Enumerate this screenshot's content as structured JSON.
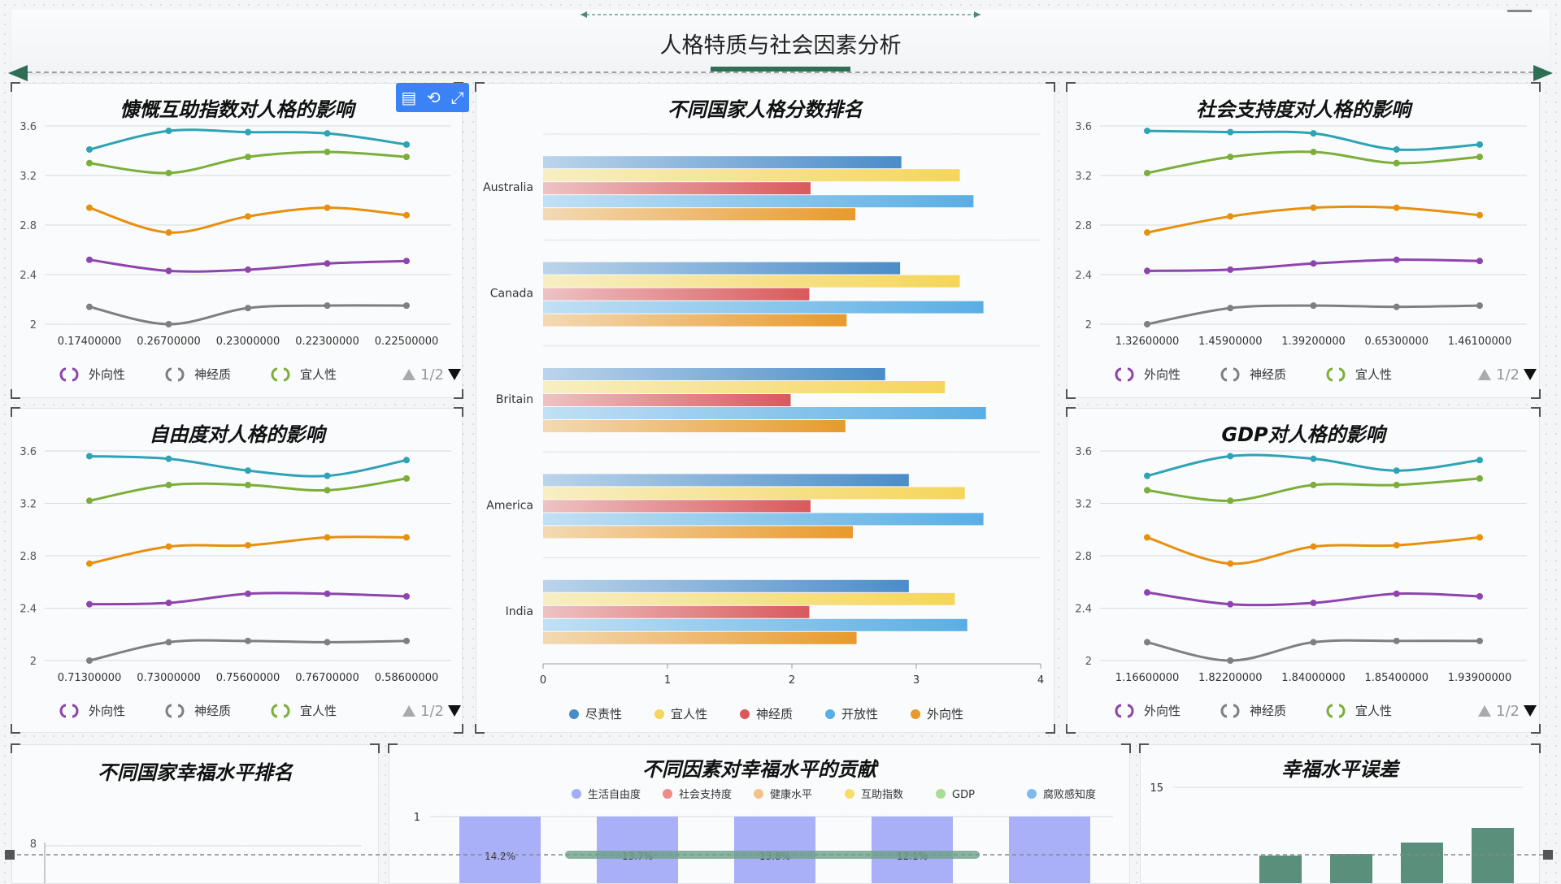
{
  "header": {
    "title": "人格特质与社会因素分析"
  },
  "colors": {
    "extraversion": "#8e44ad",
    "neuroticism": "#7f7f7f",
    "agreeableness": "#7cae3a",
    "orange": "#e8900d",
    "teal": "#2ea3b5"
  },
  "legend_labels": {
    "extraversion": "外向性",
    "neuroticism": "神经质",
    "agreeableness": "宜人性"
  },
  "pager": {
    "text": "1/2"
  },
  "toolbox": {
    "icons": [
      "data-view-icon",
      "restore-icon",
      "fullscreen-icon"
    ]
  },
  "chart_data": [
    {
      "id": "generosity",
      "type": "line",
      "title": "慷慨互助指数对人格的影响",
      "x": [
        "0.17400000",
        "0.26700000",
        "0.23000000",
        "0.22300000",
        "0.22500000"
      ],
      "ylim": [
        2,
        3.6
      ],
      "yticks": [
        "2",
        "2.4",
        "2.8",
        "3.2",
        "3.6"
      ],
      "series": [
        {
          "color": "#2ea3b5",
          "values": [
            3.41,
            3.56,
            3.55,
            3.54,
            3.45
          ]
        },
        {
          "color": "#7cae3a",
          "values": [
            3.3,
            3.22,
            3.35,
            3.39,
            3.35
          ]
        },
        {
          "color": "#e8900d",
          "values": [
            2.94,
            2.74,
            2.87,
            2.94,
            2.88
          ]
        },
        {
          "color": "#8e44ad",
          "values": [
            2.52,
            2.43,
            2.44,
            2.49,
            2.51
          ]
        },
        {
          "color": "#7f7f7f",
          "values": [
            2.14,
            2.0,
            2.13,
            2.15,
            2.15
          ]
        }
      ],
      "legend": [
        "外向性",
        "神经质",
        "宜人性"
      ]
    },
    {
      "id": "freedom",
      "type": "line",
      "title": "自由度对人格的影响",
      "x": [
        "0.71300000",
        "0.73000000",
        "0.75600000",
        "0.76700000",
        "0.58600000"
      ],
      "ylim": [
        2,
        3.6
      ],
      "yticks": [
        "2",
        "2.4",
        "2.8",
        "3.2",
        "3.6"
      ],
      "series": [
        {
          "color": "#2ea3b5",
          "values": [
            3.56,
            3.54,
            3.45,
            3.41,
            3.53
          ]
        },
        {
          "color": "#7cae3a",
          "values": [
            3.22,
            3.34,
            3.34,
            3.3,
            3.39
          ]
        },
        {
          "color": "#e8900d",
          "values": [
            2.74,
            2.87,
            2.88,
            2.94,
            2.94
          ]
        },
        {
          "color": "#8e44ad",
          "values": [
            2.43,
            2.44,
            2.51,
            2.51,
            2.49
          ]
        },
        {
          "color": "#7f7f7f",
          "values": [
            2.0,
            2.14,
            2.15,
            2.14,
            2.15
          ]
        }
      ],
      "legend": [
        "外向性",
        "神经质",
        "宜人性"
      ]
    },
    {
      "id": "country-personality",
      "type": "bar",
      "title": "不同国家人格分数排名",
      "categories": [
        "Australia",
        "Canada",
        "Britain",
        "America",
        "India"
      ],
      "xlim": [
        0,
        4
      ],
      "xticks": [
        "0",
        "1",
        "2",
        "3",
        "4"
      ],
      "series": [
        {
          "name": "尽责性",
          "color": "#4a8cc9",
          "values": [
            2.88,
            2.87,
            2.75,
            2.94,
            2.94
          ]
        },
        {
          "name": "宜人性",
          "color": "#f5d65a",
          "values": [
            3.35,
            3.35,
            3.23,
            3.39,
            3.31
          ]
        },
        {
          "name": "神经质",
          "color": "#d9595b",
          "values": [
            2.15,
            2.14,
            1.99,
            2.15,
            2.14
          ]
        },
        {
          "name": "开放性",
          "color": "#5aaee5",
          "values": [
            3.46,
            3.54,
            3.56,
            3.54,
            3.41
          ]
        },
        {
          "name": "外向性",
          "color": "#e89a2c",
          "values": [
            2.51,
            2.44,
            2.43,
            2.49,
            2.52
          ]
        }
      ]
    },
    {
      "id": "social-support",
      "type": "line",
      "title": "社会支持度对人格的影响",
      "x": [
        "1.32600000",
        "1.45900000",
        "1.39200000",
        "0.65300000",
        "1.46100000"
      ],
      "ylim": [
        2,
        3.6
      ],
      "yticks": [
        "2",
        "2.4",
        "2.8",
        "3.2",
        "3.6"
      ],
      "series": [
        {
          "color": "#2ea3b5",
          "values": [
            3.56,
            3.55,
            3.54,
            3.41,
            3.45
          ]
        },
        {
          "color": "#7cae3a",
          "values": [
            3.22,
            3.35,
            3.39,
            3.3,
            3.35
          ]
        },
        {
          "color": "#e8900d",
          "values": [
            2.74,
            2.87,
            2.94,
            2.94,
            2.88
          ]
        },
        {
          "color": "#8e44ad",
          "values": [
            2.43,
            2.44,
            2.49,
            2.52,
            2.51
          ]
        },
        {
          "color": "#7f7f7f",
          "values": [
            2.0,
            2.13,
            2.15,
            2.14,
            2.15
          ]
        }
      ],
      "legend": [
        "外向性",
        "神经质",
        "宜人性"
      ]
    },
    {
      "id": "gdp",
      "type": "line",
      "title": "GDP对人格的影响",
      "x": [
        "1.16600000",
        "1.82200000",
        "1.84000000",
        "1.85400000",
        "1.93900000"
      ],
      "ylim": [
        2,
        3.6
      ],
      "yticks": [
        "2",
        "2.4",
        "2.8",
        "3.2",
        "3.6"
      ],
      "series": [
        {
          "color": "#2ea3b5",
          "values": [
            3.41,
            3.56,
            3.54,
            3.45,
            3.53
          ]
        },
        {
          "color": "#7cae3a",
          "values": [
            3.3,
            3.22,
            3.34,
            3.34,
            3.39
          ]
        },
        {
          "color": "#e8900d",
          "values": [
            2.94,
            2.74,
            2.87,
            2.88,
            2.94
          ]
        },
        {
          "color": "#8e44ad",
          "values": [
            2.52,
            2.43,
            2.44,
            2.51,
            2.49
          ]
        },
        {
          "color": "#7f7f7f",
          "values": [
            2.14,
            2.0,
            2.14,
            2.15,
            2.15
          ]
        }
      ],
      "legend": [
        "外向性",
        "神经质",
        "宜人性"
      ]
    },
    {
      "id": "country-happiness",
      "type": "bar",
      "title": "不同国家幸福水平排名",
      "yticks_visible": [
        "8"
      ]
    },
    {
      "id": "factor-contribution",
      "type": "bar",
      "title": "不同因素对幸福水平的贡献",
      "legend": [
        {
          "name": "生活自由度",
          "color": "#a5aef5"
        },
        {
          "name": "社会支持度",
          "color": "#ef8a8a"
        },
        {
          "name": "健康水平",
          "color": "#f5c28a"
        },
        {
          "name": "互助指数",
          "color": "#f7de6a"
        },
        {
          "name": "GDP",
          "color": "#a9dd95"
        },
        {
          "name": "腐败感知度",
          "color": "#7bbcf0"
        }
      ],
      "yticks_visible": [
        "1"
      ],
      "bars": [
        "14.2%",
        "13.7%",
        "13.8%",
        "12.1%",
        ""
      ]
    },
    {
      "id": "happiness-error",
      "type": "bar",
      "title": "幸福水平误差",
      "yticks_visible": [
        "15"
      ]
    }
  ]
}
